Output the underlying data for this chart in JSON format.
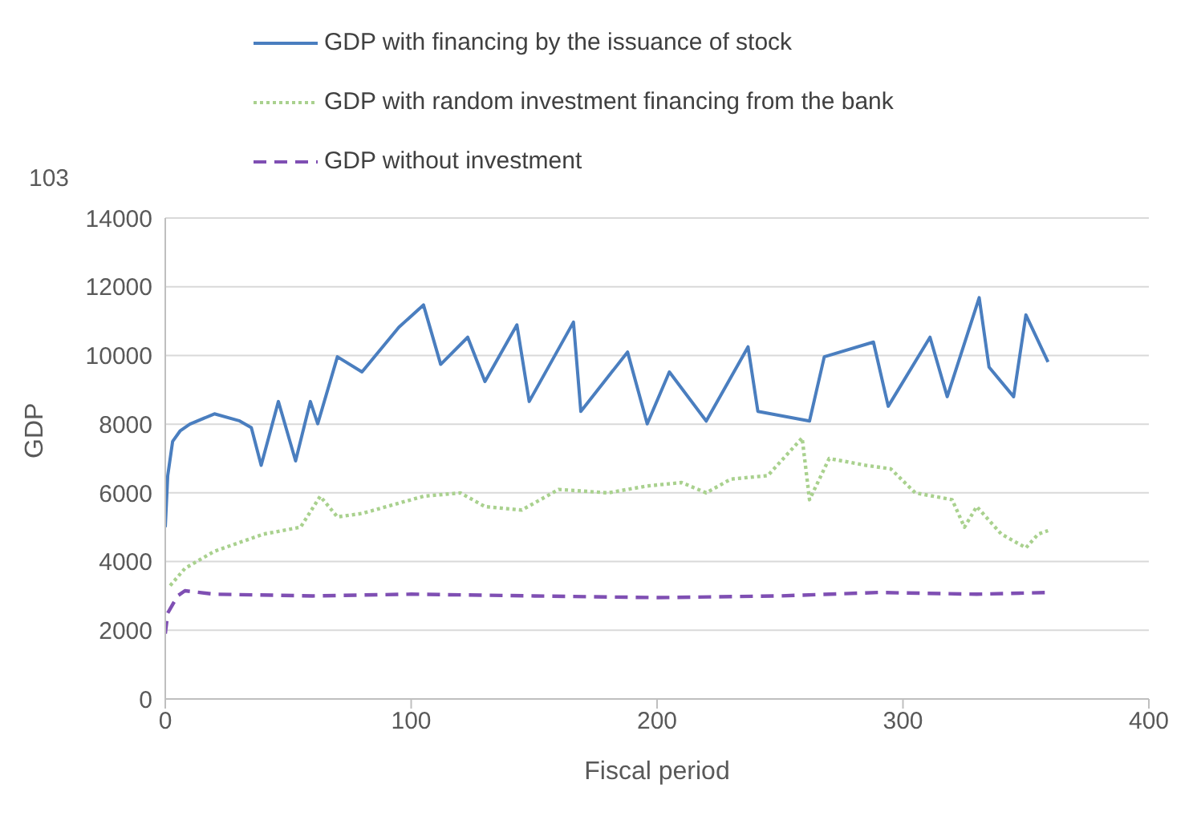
{
  "chart_data": {
    "type": "line",
    "xlabel": "Fiscal period",
    "ylabel": "GDP",
    "annotations": [
      "103"
    ],
    "xlim": [
      0,
      400
    ],
    "xticks": [
      0,
      100,
      200,
      300,
      400
    ],
    "ylim": [
      0,
      14000
    ],
    "yticks": [
      0,
      2000,
      4000,
      6000,
      8000,
      10000,
      12000,
      14000
    ],
    "grid": "y",
    "legend": "top",
    "marker": "none",
    "series": [
      {
        "name": "GDP with financing by the issuance of stock",
        "color": "#4a7ebf",
        "line_style": "solid",
        "x": [
          0,
          1,
          3,
          6,
          10,
          20,
          30,
          35,
          39,
          46,
          53,
          59,
          62,
          70,
          80,
          95,
          105,
          112,
          123,
          130,
          143,
          148,
          166,
          169,
          188,
          196,
          205,
          220,
          237,
          241,
          262,
          268,
          288,
          294,
          311,
          318,
          331,
          335,
          345,
          350,
          359
        ],
        "values": [
          5000,
          6500,
          7500,
          7800,
          8000,
          8300,
          8100,
          7900,
          6800,
          8660,
          6930,
          8660,
          8010,
          9960,
          9520,
          10820,
          11470,
          9740,
          10530,
          9240,
          10890,
          8660,
          10970,
          8370,
          10100,
          8010,
          9520,
          8090,
          10250,
          8370,
          8090,
          9960,
          10390,
          8520,
          10530,
          8800,
          11680,
          9660,
          8800,
          11180,
          9810
        ]
      },
      {
        "name": "GDP with  random investment financing from the bank",
        "color": "#a9d18e",
        "line_style": "dotted",
        "x": [
          2,
          8,
          20,
          40,
          55,
          63,
          70,
          80,
          95,
          105,
          120,
          130,
          145,
          160,
          180,
          196,
          210,
          220,
          230,
          245,
          259,
          262,
          270,
          285,
          295,
          305,
          320,
          325,
          330,
          340,
          350,
          355,
          359
        ],
        "values": [
          3300,
          3800,
          4300,
          4800,
          5000,
          5900,
          5300,
          5400,
          5700,
          5900,
          6000,
          5600,
          5500,
          6100,
          6000,
          6200,
          6300,
          6000,
          6400,
          6500,
          7600,
          5800,
          7000,
          6800,
          6700,
          6000,
          5800,
          5000,
          5600,
          4800,
          4400,
          4800,
          4900
        ]
      },
      {
        "name": "GDP without investment",
        "color": "#7f4fb3",
        "line_style": "dashed",
        "x": [
          0,
          1,
          5,
          8,
          20,
          60,
          100,
          150,
          200,
          250,
          290,
          330,
          359
        ],
        "values": [
          1900,
          2500,
          3000,
          3150,
          3050,
          3000,
          3050,
          3000,
          2950,
          3000,
          3100,
          3050,
          3100
        ]
      }
    ]
  }
}
